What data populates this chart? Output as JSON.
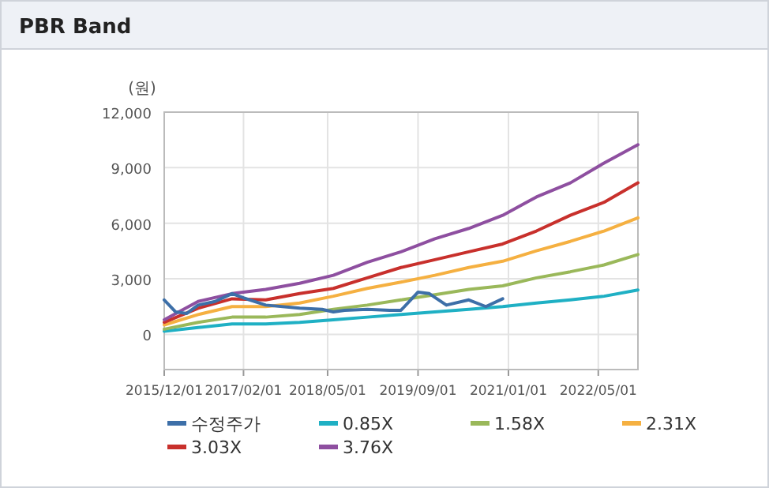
{
  "chart_data": {
    "type": "line",
    "title": "PBR Band",
    "annotations": [
      "(원)"
    ],
    "xlim": [
      "2015-12-01",
      "2022-12-01"
    ],
    "ylim": [
      -1900,
      12000
    ],
    "xticks": [
      {
        "value": "2015-12-01",
        "label": "2015/12/01"
      },
      {
        "value": "2017-02-01",
        "label": "2017/02/01"
      },
      {
        "value": "2018-05-01",
        "label": "2018/05/01"
      },
      {
        "value": "2019-09-01",
        "label": "2019/09/01"
      },
      {
        "value": "2021-01-01",
        "label": "2021/01/01"
      },
      {
        "value": "2022-05-01",
        "label": "2022/05/01"
      }
    ],
    "yticks": [
      0,
      {
        "value": 3000,
        "label": "3,000"
      },
      {
        "value": 6000,
        "label": "6,000"
      },
      {
        "value": 9000,
        "label": "9,000"
      },
      {
        "value": 12000,
        "label": "12,000"
      }
    ],
    "grid": true,
    "legend": "bottom",
    "x": [
      "2015-12",
      "2016-06",
      "2016-12",
      "2017-06",
      "2017-12",
      "2018-06",
      "2018-12",
      "2019-06",
      "2019-12",
      "2020-06",
      "2020-12",
      "2021-06",
      "2021-12",
      "2022-06",
      "2022-12"
    ],
    "series": [
      {
        "name": "수정주가",
        "color": "#3d6fa8",
        "x": [
          "2015-12",
          "2016-02",
          "2016-04",
          "2016-06",
          "2016-09",
          "2016-12",
          "2017-02",
          "2017-06",
          "2017-12",
          "2018-04",
          "2018-06",
          "2018-08",
          "2018-12",
          "2019-04",
          "2019-06",
          "2019-09",
          "2019-11",
          "2020-02",
          "2020-06",
          "2020-09",
          "2020-12"
        ],
        "values": [
          1860,
          1210,
          1130,
          1580,
          1780,
          2200,
          1970,
          1580,
          1410,
          1350,
          1210,
          1300,
          1350,
          1300,
          1300,
          2280,
          2200,
          1580,
          1860,
          1500,
          1920
        ]
      },
      {
        "name": "0.85X",
        "color": "#1fb0c4",
        "values": [
          170,
          370,
          560,
          560,
          650,
          790,
          930,
          1070,
          1210,
          1350,
          1500,
          1690,
          1860,
          2060,
          2400
        ]
      },
      {
        "name": "1.58X",
        "color": "#9ab85a",
        "values": [
          280,
          650,
          930,
          930,
          1070,
          1350,
          1580,
          1860,
          2140,
          2430,
          2620,
          3050,
          3380,
          3750,
          4310
        ]
      },
      {
        "name": "2.31X",
        "color": "#f5b041",
        "values": [
          510,
          1070,
          1500,
          1500,
          1690,
          2060,
          2480,
          2820,
          3190,
          3610,
          3950,
          4510,
          5020,
          5580,
          6290
        ]
      },
      {
        "name": "3.03X",
        "color": "#c8302c",
        "values": [
          650,
          1410,
          1920,
          1860,
          2200,
          2480,
          3050,
          3610,
          4030,
          4460,
          4880,
          5580,
          6430,
          7130,
          8180
        ]
      },
      {
        "name": "3.76X",
        "color": "#8e4fa0",
        "values": [
          790,
          1780,
          2200,
          2430,
          2760,
          3190,
          3890,
          4460,
          5160,
          5720,
          6430,
          7420,
          8180,
          9250,
          10240
        ]
      }
    ]
  }
}
